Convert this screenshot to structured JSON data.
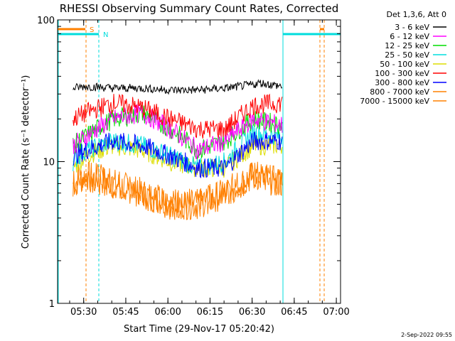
{
  "chart_data": {
    "type": "line",
    "title": "RHESSI Observing Summary Count Rates, Corrected",
    "xlabel": "Start Time (29-Nov-17 05:20:42)",
    "ylabel": "Corrected Count Rate (s⁻¹ detector⁻¹)",
    "yscale": "log",
    "ylim": [
      1,
      100
    ],
    "xlim": [
      "05:20:42",
      "07:01:30"
    ],
    "x_ticks": [
      "05:30",
      "05:45",
      "06:00",
      "06:15",
      "06:30",
      "06:45",
      "07:00"
    ],
    "y_ticks": [
      "1",
      "10",
      "100"
    ],
    "legend_title": "Det 1,3,6, Att 0",
    "legend_position": "right",
    "x_unit": "minutes",
    "series": [
      {
        "name": "3 - 6 keV",
        "color": "#000000",
        "x": [
          5.5,
          10,
          20,
          30,
          40,
          50,
          60,
          70,
          72,
          80
        ],
        "y": [
          33,
          34,
          33,
          33,
          32,
          32,
          33,
          35,
          36,
          34
        ]
      },
      {
        "name": "6 - 12 keV",
        "color": "#ff00ff",
        "x": [
          5.5,
          10,
          20,
          30,
          40,
          50,
          60,
          70,
          80
        ],
        "y": [
          13,
          15,
          20,
          22,
          17,
          12,
          14,
          20,
          18
        ]
      },
      {
        "name": "12 - 25 keV",
        "color": "#00dd00",
        "x": [
          5.5,
          10,
          20,
          30,
          40,
          50,
          60,
          70,
          80
        ],
        "y": [
          13,
          15,
          20,
          22,
          17,
          12,
          14,
          20,
          18
        ]
      },
      {
        "name": "25 - 50 keV",
        "color": "#00dddd",
        "x": [
          5.5,
          10,
          20,
          30,
          40,
          50,
          60,
          70,
          80
        ],
        "y": [
          10,
          12,
          14,
          13,
          11,
          9,
          10,
          16,
          15
        ]
      },
      {
        "name": "50 - 100 keV",
        "color": "#dddd00",
        "x": [
          5.5,
          10,
          20,
          30,
          40,
          50,
          60,
          70,
          80
        ],
        "y": [
          9,
          11,
          13,
          12,
          10,
          9,
          9,
          13,
          13
        ]
      },
      {
        "name": "100 - 300 keV",
        "color": "#ff0000",
        "x": [
          5.5,
          10,
          20,
          30,
          40,
          50,
          60,
          70,
          80
        ],
        "y": [
          20,
          22,
          26,
          24,
          20,
          17,
          17,
          25,
          26
        ]
      },
      {
        "name": "300 - 800 keV",
        "color": "#0000ff",
        "x": [
          5.5,
          10,
          20,
          30,
          40,
          50,
          60,
          70,
          80
        ],
        "y": [
          11,
          12,
          14,
          13,
          11,
          9,
          9,
          14,
          14
        ]
      },
      {
        "name": "800 - 7000 keV",
        "color": "#ff8000",
        "x": [
          5.5,
          10,
          20,
          30,
          40,
          50,
          60,
          70,
          80
        ],
        "y": [
          7,
          8,
          7,
          6,
          5,
          5,
          6,
          8,
          7
        ]
      },
      {
        "name": "7000 - 15000 keV",
        "color": "#ff8000",
        "x": [
          5.5,
          10,
          20,
          30,
          40,
          50,
          60,
          70,
          80
        ],
        "y": [
          7,
          8,
          7,
          6,
          5,
          5,
          6,
          8,
          7
        ]
      }
    ],
    "annotations": [
      {
        "text": "S",
        "color": "#ff8000",
        "x": 7.5
      },
      {
        "text": "N",
        "color": "#00dddd",
        "x": 11.5
      }
    ],
    "footer": "2-Sep-2022 09:55"
  }
}
